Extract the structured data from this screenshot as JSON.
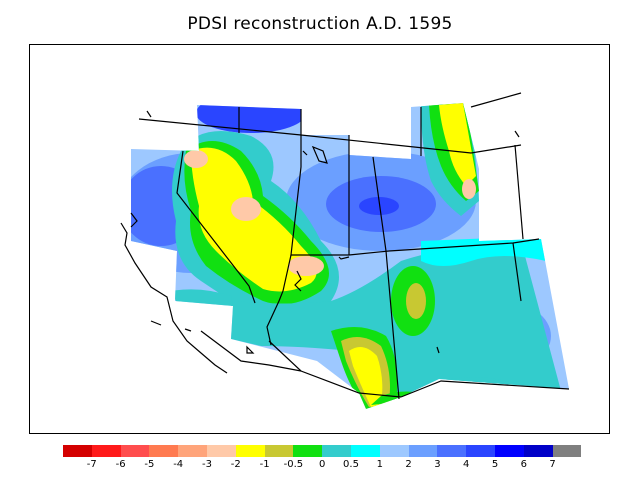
{
  "title": "PDSI reconstruction A.D. 1595",
  "legend": {
    "colors": [
      "#d40000",
      "#ff1a1a",
      "#ff4d4d",
      "#ff7a50",
      "#ffa47a",
      "#ffc9a8",
      "#ffff00",
      "#c8c832",
      "#11e011",
      "#33cccc",
      "#00ffff",
      "#9dc8ff",
      "#6b9fff",
      "#4a70ff",
      "#2a45ff",
      "#0000ff",
      "#0000c8",
      "#7f7f7f"
    ],
    "labels": [
      "-7",
      "-6",
      "-5",
      "-4",
      "-3",
      "-2",
      "-1",
      "-0.5",
      "0",
      "0.5",
      "1",
      "2",
      "3",
      "4",
      "5",
      "6",
      "7"
    ]
  }
}
